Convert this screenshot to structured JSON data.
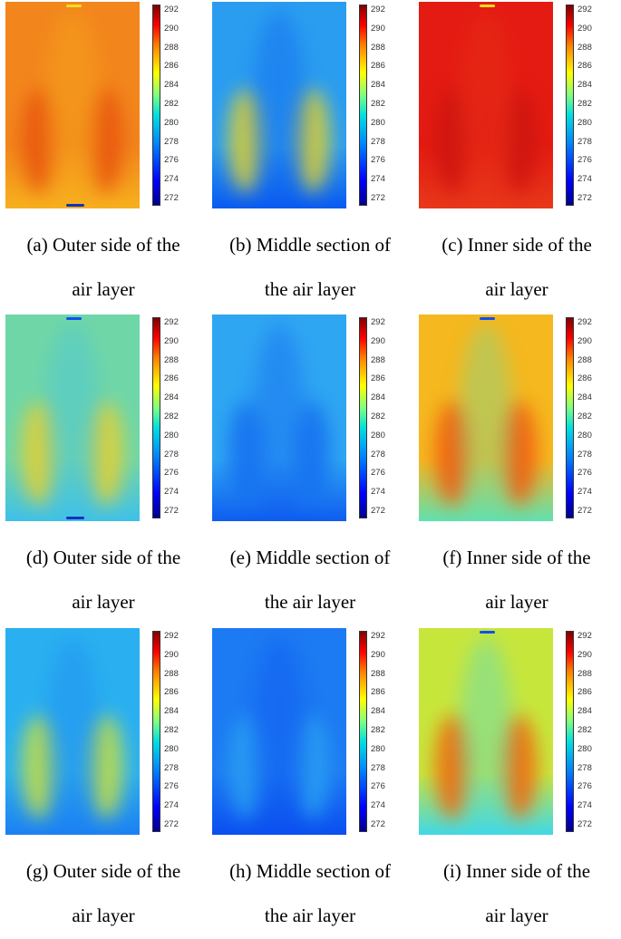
{
  "colorbar": {
    "ticks": [
      "292",
      "290",
      "288",
      "286",
      "284",
      "282",
      "280",
      "278",
      "276",
      "274",
      "272"
    ],
    "min": 272,
    "max": 292,
    "colormap": "jet"
  },
  "panels": [
    {
      "id": "a",
      "line1": "(a) Outer side of the",
      "line2": "air layer",
      "base": "#f2861c",
      "blob": "#e8540e",
      "low": "#f7b01e",
      "mark": "top-yellow",
      "markBottom": true
    },
    {
      "id": "b",
      "line1": "(b) Middle section of",
      "line2": "the air layer",
      "base": "#2a9df0",
      "blob": "#e0d030",
      "low": "#0a5af0",
      "mark": "none",
      "markBottom": false
    },
    {
      "id": "c",
      "line1": "(c) Inner side of the",
      "line2": "air layer",
      "base": "#e41b12",
      "blob": "#cc1510",
      "low": "#e8381a",
      "mark": "top-yellow",
      "markBottom": false
    },
    {
      "id": "d",
      "line1": "(d) Outer side of the",
      "line2": "air layer",
      "base": "#6fd6a8",
      "blob": "#e8d030",
      "low": "#40c0e8",
      "mark": "top-blue",
      "markBottom": true
    },
    {
      "id": "e",
      "line1": "(e) Middle section of",
      "line2": "the air layer",
      "base": "#2fa6f2",
      "blob": "#1670f0",
      "low": "#0f5cf0",
      "mark": "none",
      "markBottom": false
    },
    {
      "id": "f",
      "line1": "(f) Inner side of the",
      "line2": "air layer",
      "base": "#f5b81e",
      "blob": "#ef5a12",
      "low": "#60e0b0",
      "mark": "top-blue",
      "markBottom": false
    },
    {
      "id": "g",
      "line1": "(g) Outer side of the",
      "line2": "air layer",
      "base": "#2ab0f0",
      "blob": "#c8e040",
      "low": "#1c80f2",
      "mark": "none",
      "markBottom": false
    },
    {
      "id": "h",
      "line1": "(h) Middle section of",
      "line2": "the air layer",
      "base": "#1c7af2",
      "blob": "#2aa0f2",
      "low": "#0b4ff0",
      "mark": "none",
      "markBottom": false
    },
    {
      "id": "i",
      "line1": "(i) Inner side of the",
      "line2": "air layer",
      "base": "#c7e63c",
      "blob": "#f2640e",
      "low": "#40d8e8",
      "mark": "top-blue",
      "markBottom": false
    }
  ]
}
